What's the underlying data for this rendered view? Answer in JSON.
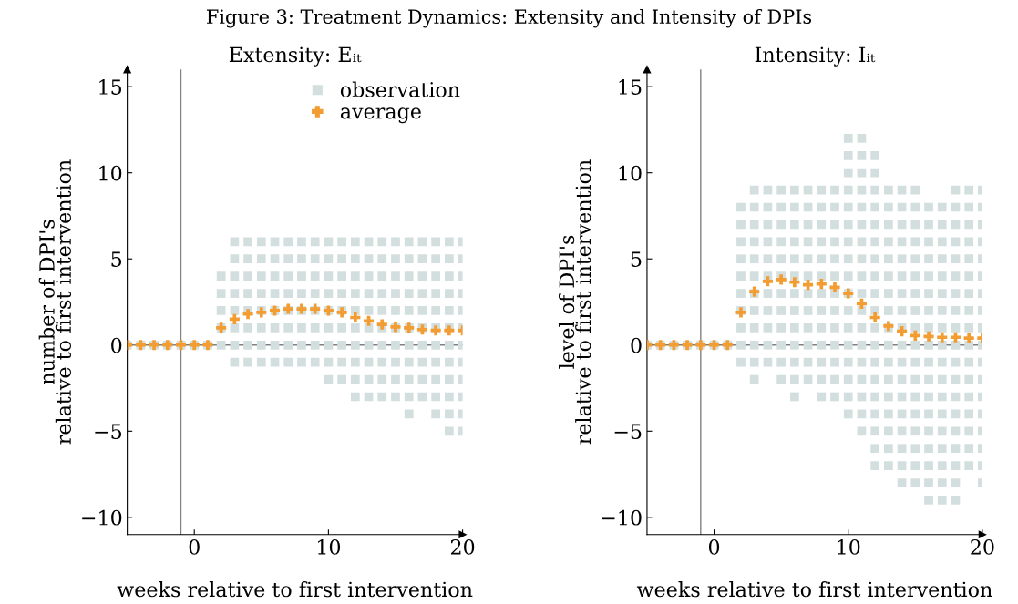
{
  "chart_data": [
    {
      "type": "scatter",
      "title": "Extensity: Eᵢₜ",
      "annotations": [
        "Figure 3: Treatment Dynamics: Extensity and Intensity of DPIs"
      ],
      "xlabel": "weeks relative to first intervention",
      "ylabel": "number of DPI's\nrelative to first intervention",
      "xlim": [
        -5,
        20
      ],
      "ylim": [
        -11,
        16
      ],
      "xticks": [
        0,
        10,
        20
      ],
      "yticks": [
        -10,
        -5,
        0,
        5,
        10,
        15
      ],
      "grid": false,
      "legend": "top",
      "ref_lines": [
        {
          "axis": "x",
          "value": -1,
          "color": "#808080"
        },
        {
          "axis": "y",
          "value": 0,
          "color": "#808080"
        }
      ],
      "series": [
        {
          "name": "observation",
          "color": "#d3dede",
          "marker": "square",
          "x": [
            -5,
            -4,
            -3,
            -2,
            -1,
            0,
            1,
            2,
            2,
            2,
            2,
            2,
            3,
            3,
            3,
            3,
            3,
            3,
            3,
            3,
            4,
            4,
            4,
            4,
            4,
            4,
            4,
            4,
            5,
            5,
            5,
            5,
            5,
            5,
            5,
            5,
            6,
            6,
            6,
            6,
            6,
            6,
            6,
            6,
            7,
            7,
            7,
            7,
            7,
            7,
            7,
            7,
            8,
            8,
            8,
            8,
            8,
            8,
            8,
            8,
            9,
            9,
            9,
            9,
            9,
            9,
            9,
            9,
            10,
            10,
            10,
            10,
            10,
            10,
            10,
            10,
            10,
            11,
            11,
            11,
            11,
            11,
            11,
            11,
            11,
            11,
            12,
            12,
            12,
            12,
            12,
            12,
            12,
            12,
            12,
            12,
            13,
            13,
            13,
            13,
            13,
            13,
            13,
            13,
            13,
            13,
            14,
            14,
            14,
            14,
            14,
            14,
            14,
            14,
            14,
            14,
            15,
            15,
            15,
            15,
            15,
            15,
            15,
            15,
            15,
            15,
            16,
            16,
            16,
            16,
            16,
            16,
            16,
            16,
            16,
            16,
            16,
            17,
            17,
            17,
            17,
            17,
            17,
            17,
            17,
            17,
            17,
            18,
            18,
            18,
            18,
            18,
            18,
            18,
            18,
            18,
            18,
            18,
            19,
            19,
            19,
            19,
            19,
            19,
            19,
            19,
            19,
            19,
            19,
            19,
            20,
            20,
            20,
            20,
            20,
            20,
            20,
            20,
            20,
            20,
            20,
            20
          ],
          "values": [
            0,
            0,
            0,
            0,
            0,
            0,
            0,
            0,
            1,
            2,
            3,
            4,
            -1,
            0,
            1,
            2,
            3,
            4,
            5,
            6,
            -1,
            0,
            1,
            2,
            3,
            4,
            5,
            6,
            -1,
            0,
            1,
            2,
            3,
            4,
            5,
            6,
            -1,
            0,
            1,
            2,
            3,
            4,
            5,
            6,
            -1,
            0,
            1,
            2,
            3,
            4,
            5,
            6,
            -1,
            0,
            1,
            2,
            3,
            4,
            5,
            6,
            -1,
            0,
            1,
            2,
            3,
            4,
            5,
            6,
            -2,
            -1,
            0,
            1,
            2,
            3,
            4,
            5,
            6,
            -2,
            -1,
            0,
            1,
            2,
            3,
            4,
            5,
            6,
            -3,
            -2,
            -1,
            0,
            1,
            2,
            3,
            4,
            5,
            6,
            -3,
            -2,
            -1,
            0,
            1,
            2,
            3,
            4,
            5,
            6,
            -3,
            -2,
            -1,
            0,
            1,
            2,
            3,
            4,
            5,
            6,
            -3,
            -2,
            -1,
            0,
            1,
            2,
            3,
            4,
            5,
            6,
            -4,
            -3,
            -2,
            -1,
            0,
            1,
            2,
            3,
            4,
            5,
            6,
            -3,
            -2,
            -1,
            0,
            1,
            2,
            3,
            4,
            5,
            6,
            -4,
            -3,
            -2,
            -1,
            0,
            1,
            2,
            3,
            4,
            5,
            6,
            -5,
            -4,
            -3,
            -2,
            -1,
            0,
            1,
            2,
            3,
            4,
            5,
            6,
            -5,
            -4,
            -3,
            -2,
            -1,
            0,
            1,
            2,
            3,
            4,
            5,
            6
          ]
        },
        {
          "name": "average",
          "color": "#f39c31",
          "marker": "cross",
          "x": [
            -5,
            -4,
            -3,
            -2,
            -1,
            0,
            1,
            2,
            3,
            4,
            5,
            6,
            7,
            8,
            9,
            10,
            11,
            12,
            13,
            14,
            15,
            16,
            17,
            18,
            19,
            20
          ],
          "values": [
            0,
            0,
            0,
            0,
            0,
            0,
            0,
            1.0,
            1.5,
            1.8,
            1.9,
            2.0,
            2.1,
            2.1,
            2.1,
            2.0,
            1.9,
            1.6,
            1.4,
            1.2,
            1.05,
            1.0,
            0.9,
            0.85,
            0.85,
            0.85
          ]
        }
      ]
    },
    {
      "type": "scatter",
      "title": "Intensity: Iᵢₜ",
      "xlabel": "weeks relative to first intervention",
      "ylabel": "level of DPI's\nrelative to first intervention",
      "xlim": [
        -5,
        20
      ],
      "ylim": [
        -11,
        16
      ],
      "xticks": [
        0,
        10,
        20
      ],
      "yticks": [
        -10,
        -5,
        0,
        5,
        10,
        15
      ],
      "grid": false,
      "ref_lines": [
        {
          "axis": "x",
          "value": -1,
          "color": "#808080"
        },
        {
          "axis": "y",
          "value": 0,
          "color": "#808080"
        }
      ],
      "series": [
        {
          "color": "#d3dede",
          "marker": "square",
          "x": [
            -5,
            -4,
            -3,
            -2,
            -1,
            0,
            1,
            2,
            2,
            2,
            2,
            2,
            2,
            2,
            2,
            2,
            2,
            3,
            3,
            3,
            3,
            3,
            3,
            3,
            3,
            3,
            3,
            3,
            3,
            4,
            4,
            4,
            4,
            4,
            4,
            4,
            4,
            4,
            4,
            4,
            5,
            5,
            5,
            5,
            5,
            5,
            5,
            5,
            5,
            5,
            5,
            5,
            6,
            6,
            6,
            6,
            6,
            6,
            6,
            6,
            6,
            6,
            6,
            6,
            6,
            7,
            7,
            7,
            7,
            7,
            7,
            7,
            7,
            7,
            7,
            7,
            7,
            8,
            8,
            8,
            8,
            8,
            8,
            8,
            8,
            8,
            8,
            8,
            8,
            8,
            9,
            9,
            9,
            9,
            9,
            9,
            9,
            9,
            9,
            9,
            9,
            9,
            9,
            10,
            10,
            10,
            10,
            10,
            10,
            10,
            10,
            10,
            10,
            10,
            10,
            10,
            10,
            10,
            10,
            10,
            11,
            11,
            11,
            11,
            11,
            11,
            11,
            11,
            11,
            11,
            11,
            11,
            11,
            11,
            11,
            11,
            11,
            11,
            12,
            12,
            12,
            12,
            12,
            12,
            12,
            12,
            12,
            12,
            12,
            12,
            12,
            12,
            12,
            12,
            12,
            12,
            12,
            13,
            13,
            13,
            13,
            13,
            13,
            13,
            13,
            13,
            13,
            13,
            13,
            13,
            13,
            13,
            13,
            13,
            14,
            14,
            14,
            14,
            14,
            14,
            14,
            14,
            14,
            14,
            14,
            14,
            14,
            14,
            14,
            14,
            14,
            14,
            15,
            15,
            15,
            15,
            15,
            15,
            15,
            15,
            15,
            15,
            15,
            15,
            15,
            15,
            15,
            15,
            15,
            15,
            16,
            16,
            16,
            16,
            16,
            16,
            16,
            16,
            16,
            16,
            16,
            16,
            16,
            16,
            16,
            16,
            16,
            16,
            17,
            17,
            17,
            17,
            17,
            17,
            17,
            17,
            17,
            17,
            17,
            17,
            17,
            17,
            17,
            17,
            17,
            17,
            18,
            18,
            18,
            18,
            18,
            18,
            18,
            18,
            18,
            18,
            18,
            18,
            18,
            18,
            18,
            18,
            18,
            18,
            18,
            19,
            19,
            19,
            19,
            19,
            19,
            19,
            19,
            19,
            19,
            19,
            19,
            19,
            19,
            19,
            19,
            19,
            20,
            20,
            20,
            20,
            20,
            20,
            20,
            20,
            20,
            20,
            20,
            20,
            20,
            20,
            20,
            20,
            20,
            20
          ],
          "values": [
            0,
            0,
            0,
            0,
            0,
            0,
            0,
            -1,
            0,
            1,
            2,
            3,
            4,
            5,
            6,
            7,
            8,
            -2,
            -1,
            0,
            1,
            2,
            3,
            4,
            5,
            6,
            7,
            8,
            9,
            -1,
            0,
            1,
            2,
            3,
            4,
            5,
            6,
            7,
            8,
            9,
            -2,
            -1,
            0,
            1,
            2,
            3,
            4,
            5,
            6,
            7,
            8,
            9,
            -3,
            -2,
            -1,
            0,
            1,
            2,
            3,
            4,
            5,
            6,
            7,
            8,
            9,
            -2,
            -1,
            0,
            1,
            2,
            3,
            4,
            5,
            6,
            7,
            8,
            9,
            -3,
            -2,
            -1,
            0,
            1,
            2,
            3,
            4,
            5,
            6,
            7,
            8,
            9,
            -3,
            -2,
            -1,
            0,
            1,
            2,
            3,
            4,
            5,
            6,
            7,
            8,
            9,
            -4,
            -3,
            -2,
            -1,
            0,
            1,
            2,
            3,
            4,
            5,
            6,
            7,
            8,
            9,
            10,
            11,
            12,
            -5,
            -4,
            -3,
            -2,
            -1,
            0,
            1,
            2,
            3,
            4,
            5,
            6,
            7,
            8,
            9,
            10,
            11,
            12,
            -7,
            -6,
            -5,
            -4,
            -3,
            -2,
            -1,
            0,
            1,
            2,
            3,
            4,
            5,
            6,
            7,
            8,
            9,
            10,
            11,
            -7,
            -6,
            -5,
            -4,
            -3,
            -2,
            -1,
            0,
            1,
            2,
            3,
            4,
            5,
            6,
            7,
            8,
            9,
            -8,
            -7,
            -6,
            -5,
            -4,
            -3,
            -2,
            -1,
            0,
            1,
            2,
            3,
            4,
            5,
            6,
            7,
            8,
            9,
            -8,
            -7,
            -6,
            -5,
            -4,
            -3,
            -2,
            -1,
            0,
            1,
            2,
            3,
            4,
            5,
            6,
            7,
            8,
            9,
            -9,
            -8,
            -7,
            -6,
            -5,
            -4,
            -3,
            -2,
            -1,
            0,
            1,
            2,
            3,
            4,
            5,
            6,
            7,
            8,
            -9,
            -8,
            -7,
            -6,
            -5,
            -4,
            -3,
            -2,
            -1,
            0,
            1,
            2,
            3,
            4,
            5,
            6,
            7,
            8,
            -9,
            -8,
            -7,
            -6,
            -5,
            -4,
            -3,
            -2,
            -1,
            0,
            1,
            2,
            3,
            4,
            5,
            6,
            7,
            8,
            9,
            -7,
            -6,
            -5,
            -4,
            -3,
            -2,
            -1,
            0,
            1,
            2,
            3,
            4,
            5,
            6,
            7,
            8,
            9,
            -8,
            -7,
            -6,
            -5,
            -4,
            -3,
            -2,
            -1,
            0,
            1,
            2,
            3,
            4,
            5,
            6,
            7,
            8,
            9
          ]
        },
        {
          "color": "#f39c31",
          "marker": "cross",
          "x": [
            -5,
            -4,
            -3,
            -2,
            -1,
            0,
            1,
            2,
            3,
            4,
            5,
            6,
            7,
            8,
            9,
            10,
            11,
            12,
            13,
            14,
            15,
            16,
            17,
            18,
            19,
            20
          ],
          "values": [
            0,
            0,
            0,
            0,
            0,
            0,
            0,
            1.9,
            3.1,
            3.7,
            3.8,
            3.65,
            3.5,
            3.55,
            3.35,
            3.0,
            2.4,
            1.6,
            1.1,
            0.8,
            0.55,
            0.5,
            0.45,
            0.45,
            0.4,
            0.4
          ]
        }
      ]
    }
  ]
}
